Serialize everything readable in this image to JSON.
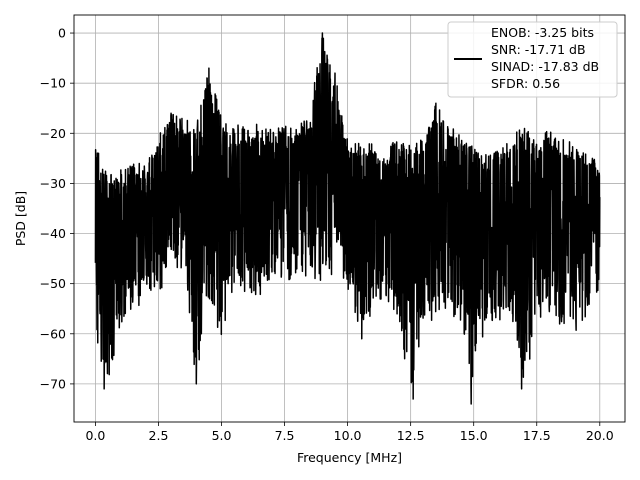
{
  "chart_data": {
    "type": "line",
    "xlabel": "Frequency [MHz]",
    "ylabel": "PSD [dB]",
    "xlim": [
      -0.85,
      21.0
    ],
    "ylim": [
      -77.6,
      3.6
    ],
    "x_ticks": [
      0.0,
      2.5,
      5.0,
      7.5,
      10.0,
      12.5,
      15.0,
      17.5,
      20.0
    ],
    "x_tick_labels": [
      "0.0",
      "2.5",
      "5.0",
      "7.5",
      "10.0",
      "12.5",
      "15.0",
      "17.5",
      "20.0"
    ],
    "y_ticks": [
      0,
      -10,
      -20,
      -30,
      -40,
      -50,
      -60,
      -70
    ],
    "y_tick_labels": [
      "0",
      "−10",
      "−20",
      "−30",
      "−40",
      "−50",
      "−60",
      "−70"
    ],
    "grid": true,
    "legend_position": "top-right",
    "legend_lines": [
      "ENOB: -3.25 bits",
      "SNR: -17.71 dB",
      "SINAD: -17.83 dB",
      "SFDR: 0.56"
    ],
    "series": [
      {
        "color": "#000000",
        "x_range": [
          0.0,
          20.0
        ],
        "approx_envelope": {
          "x": [
            0,
            0.5,
            1.0,
            1.5,
            2.0,
            2.5,
            3.0,
            3.5,
            4.0,
            4.5,
            5.0,
            5.5,
            6.0,
            6.5,
            7.0,
            7.5,
            8.0,
            8.5,
            9.0,
            9.5,
            10.0,
            10.5,
            11.0,
            11.5,
            12.0,
            12.5,
            13.0,
            13.5,
            14.0,
            14.5,
            15.0,
            15.5,
            16.0,
            16.5,
            17.0,
            17.5,
            18.0,
            18.5,
            19.0,
            19.5,
            20.0
          ],
          "upper": [
            -21,
            -28,
            -27,
            -26,
            -26,
            -20,
            -16,
            -17,
            -18,
            -7,
            -17,
            -18,
            -19,
            -18,
            -19,
            -18,
            -19,
            -16,
            0,
            -8,
            -21,
            -21,
            -22,
            -23,
            -21,
            -22,
            -21,
            -14,
            -18,
            -20,
            -23,
            -24,
            -23,
            -21,
            -18,
            -22,
            -19,
            -21,
            -22,
            -24,
            -25
          ],
          "lower": [
            -62,
            -71,
            -58,
            -56,
            -53,
            -52,
            -48,
            -47,
            -70,
            -54,
            -61,
            -51,
            -52,
            -53,
            -50,
            -50,
            -49,
            -49,
            -50,
            -49,
            -52,
            -63,
            -55,
            -53,
            -58,
            -73,
            -58,
            -57,
            -56,
            -58,
            -74,
            -57,
            -58,
            -56,
            -71,
            -58,
            -56,
            -59,
            -60,
            -56,
            -52
          ]
        },
        "notable_peaks": [
          {
            "x": 9.0,
            "y": 0.0
          },
          {
            "x": 4.5,
            "y": -7.0
          },
          {
            "x": 9.5,
            "y": -8.0
          },
          {
            "x": 13.5,
            "y": -14.0
          },
          {
            "x": 3.0,
            "y": -16.0
          }
        ],
        "notable_dips": [
          {
            "x": 0.35,
            "y": -71.0
          },
          {
            "x": 4.0,
            "y": -70.0
          },
          {
            "x": 12.6,
            "y": -73.0
          },
          {
            "x": 14.9,
            "y": -74.0
          },
          {
            "x": 16.9,
            "y": -71.0
          }
        ]
      }
    ]
  }
}
